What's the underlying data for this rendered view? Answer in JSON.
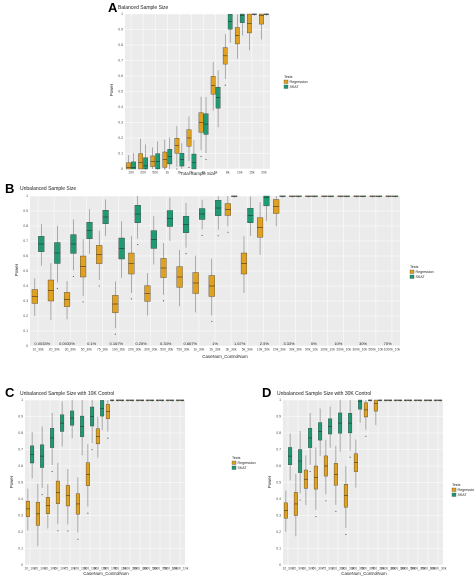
{
  "figure": {
    "letters": [
      "A",
      "B",
      "C",
      "D"
    ]
  },
  "colors": {
    "regression": "#e0a020",
    "skat": "#1f9a74",
    "panel_bg": "#ebebeb",
    "grid": "#ffffff"
  },
  "chart_data": [
    {
      "type": "box",
      "title": "Balanced Sample Size",
      "xlabel": "Total Sample Size",
      "ylabel": "Power",
      "ylim": [
        0,
        1
      ],
      "y_ticks": [
        "0",
        "0.1",
        "0.2",
        "0.3",
        "0.4",
        "0.5",
        "0.6",
        "0.7",
        "0.8",
        "0.9",
        "1"
      ],
      "categories": [
        "100",
        "200",
        "500",
        "1k",
        "2k",
        "3k",
        "4k",
        "5k",
        "8k",
        "10k",
        "15k",
        "20k"
      ],
      "legend": {
        "title": "Tests",
        "items": [
          "Regression",
          "SKAT"
        ],
        "position": "right"
      },
      "series": [
        {
          "name": "Regression",
          "values": [
            0.01,
            0.04,
            0.05,
            0.06,
            0.15,
            0.2,
            0.3,
            0.54,
            0.73,
            0.86,
            0.94,
            0.99
          ]
        },
        {
          "name": "SKAT",
          "values": [
            0.01,
            0.02,
            0.05,
            0.08,
            0.06,
            0.04,
            0.29,
            0.46,
            0.95,
            0.99,
            1.0,
            1.0
          ]
        }
      ]
    },
    {
      "type": "box",
      "title": "Unbalanced Sample Size",
      "xlabel": "CaseNum_ControlNum",
      "ylabel": "Power",
      "ylim": [
        0,
        1
      ],
      "y_ticks": [
        "0",
        "0.1",
        "0.2",
        "0.3",
        "0.4",
        "0.5",
        "0.6",
        "0.7",
        "0.8",
        "0.9",
        "1"
      ],
      "categories": [
        "10_30k",
        "20_30k",
        "30_30k",
        "50_30k",
        "75_30k",
        "100_30k",
        "200_30k",
        "300_30k",
        "500_30k",
        "750_30k",
        "1k_30k",
        "2k_30k",
        "3k_30k",
        "5k_30k",
        "10k_30k",
        "20k_30k",
        "30k_30k",
        "50k_10k",
        "100k_10k",
        "200k_10k",
        "300k_10k",
        "500k_10k",
        "1000k_10k"
      ],
      "percent_labels": [
        "0.0033%",
        "0.0033%",
        "0.1%",
        "0.167%",
        "0.25%",
        "0.33%",
        "0.667%",
        "1%",
        "1.67%",
        "2.5%",
        "3.33%",
        "5%",
        "10%",
        "30%",
        "70%"
      ],
      "legend": {
        "title": "Tests",
        "items": [
          "Regression",
          "SKAT"
        ],
        "position": "right"
      },
      "series": [
        {
          "name": "Regression",
          "values": [
            0.33,
            0.37,
            0.31,
            0.53,
            0.61,
            0.28,
            0.55,
            0.35,
            0.52,
            0.46,
            0.42,
            0.4,
            0.91,
            0.55,
            0.79,
            0.93,
            1.0,
            1.0,
            1.0,
            1.0,
            1.0,
            1.0,
            1.0
          ]
        },
        {
          "name": "SKAT",
          "values": [
            0.68,
            0.62,
            0.68,
            0.77,
            0.86,
            0.65,
            0.88,
            0.71,
            0.85,
            0.81,
            0.88,
            0.92,
            1.0,
            0.87,
            0.99,
            1.0,
            1.0,
            1.0,
            1.0,
            1.0,
            1.0,
            1.0,
            1.0
          ]
        }
      ]
    },
    {
      "type": "box",
      "title": "Unbalanced Sample Size with 10K Control",
      "xlabel": "CaseNum_ControlNum",
      "ylabel": "Power",
      "ylim": [
        0,
        1
      ],
      "y_ticks": [
        "0",
        "0.1",
        "0.2",
        "0.3",
        "0.4",
        "0.5",
        "0.6",
        "0.7",
        "0.8",
        "0.9",
        "1"
      ],
      "categories": [
        "10_10k",
        "20_10k",
        "30_10k",
        "50_10k",
        "75_10k",
        "100_10k",
        "200_10k",
        "300_10k",
        "500_10k",
        "750_10k",
        "1000_10k",
        "2000_10k",
        "3000_10k",
        "5000_10k",
        "7500_10k",
        "10000_10k"
      ],
      "legend": {
        "title": "Tests",
        "items": [
          "Regression",
          "SKAT"
        ],
        "position": "right"
      },
      "series": [
        {
          "name": "Regression",
          "values": [
            0.34,
            0.31,
            0.36,
            0.44,
            0.42,
            0.37,
            0.55,
            0.78,
            0.93,
            1.0,
            1.0,
            1.0,
            1.0,
            1.0,
            1.0,
            1.0
          ]
        },
        {
          "name": "SKAT",
          "values": [
            0.67,
            0.66,
            0.77,
            0.86,
            0.89,
            0.84,
            0.9,
            0.95,
            1.0,
            1.0,
            1.0,
            1.0,
            1.0,
            1.0,
            1.0,
            1.0
          ]
        }
      ]
    },
    {
      "type": "box",
      "title": "Unbalanced Sample Size with 30K Control",
      "xlabel": "CaseNum_ControlNum",
      "ylabel": "Power",
      "ylim": [
        0,
        1
      ],
      "y_ticks": [
        "0",
        "0.1",
        "0.2",
        "0.3",
        "0.4",
        "0.5",
        "0.6",
        "0.7",
        "0.8",
        "0.9",
        "1"
      ],
      "categories": [
        "10_30k",
        "20_30k",
        "30_30k",
        "50_30k",
        "75_30k",
        "100_30k",
        "200_30k",
        "300_30k",
        "500_30k",
        "750_30k",
        "1000_30k",
        "2000_30k",
        "3000_30k",
        "5000_30k",
        "7500_30k",
        "10000_30k"
      ],
      "legend": {
        "title": "Tests",
        "items": [
          "Regression",
          "SKAT"
        ],
        "position": "right"
      },
      "series": [
        {
          "name": "Regression",
          "values": [
            0.33,
            0.37,
            0.52,
            0.53,
            0.6,
            0.55,
            0.42,
            0.62,
            0.94,
            0.98,
            1.0,
            1.0,
            1.0,
            1.0,
            1.0,
            1.0
          ]
        },
        {
          "name": "SKAT",
          "values": [
            0.66,
            0.63,
            0.77,
            0.81,
            0.84,
            0.86,
            0.86,
            0.99,
            1.0,
            1.0,
            1.0,
            1.0,
            1.0,
            1.0,
            1.0,
            1.0
          ]
        }
      ]
    }
  ]
}
